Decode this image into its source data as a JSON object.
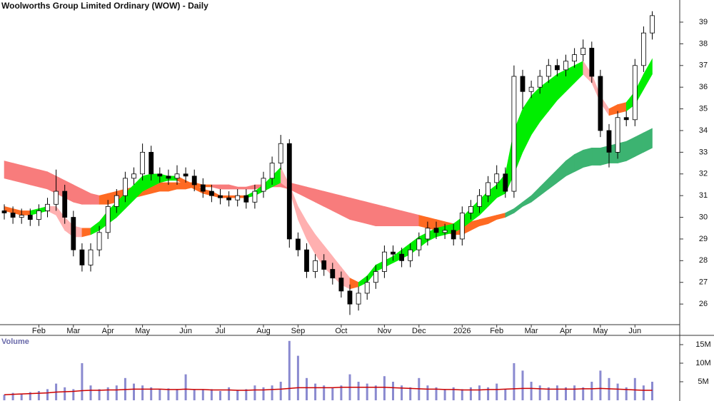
{
  "chart_data": [
    {
      "type": "candlestick",
      "title": "Woolworths Group Limited Ordinary (WOW) - Daily",
      "categories": [
        null,
        null,
        null,
        null,
        "Feb",
        null,
        null,
        null,
        "Mar",
        null,
        null,
        null,
        "Apr",
        null,
        null,
        null,
        "May",
        null,
        null,
        null,
        null,
        "Jun",
        null,
        null,
        null,
        "Jul",
        null,
        null,
        null,
        null,
        "Aug",
        null,
        null,
        null,
        "Sep",
        null,
        null,
        null,
        null,
        "Oct",
        null,
        null,
        null,
        null,
        "Nov",
        null,
        null,
        null,
        "Dec",
        null,
        null,
        null,
        null,
        "2026",
        null,
        null,
        null,
        "Feb",
        null,
        null,
        null,
        "Mar",
        null,
        null,
        null,
        "Apr",
        null,
        null,
        null,
        "May",
        null,
        null,
        null,
        "Jun",
        null,
        null
      ],
      "open": [
        30.3,
        30.2,
        30.0,
        30.1,
        29.9,
        30.3,
        30.6,
        31.2,
        30.0,
        28.5,
        27.8,
        28.5,
        29.3,
        30.5,
        31.0,
        31.8,
        32.0,
        33.0,
        32.0,
        31.9,
        31.8,
        32.0,
        31.9,
        31.5,
        31.2,
        31.0,
        30.9,
        30.8,
        31.0,
        30.7,
        31.2,
        31.8,
        32.5,
        33.4,
        29.0,
        28.5,
        27.5,
        28.0,
        27.6,
        27.2,
        26.6,
        26.0,
        26.5,
        27.0,
        27.5,
        28.4,
        28.3,
        28.0,
        28.5,
        29.0,
        29.5,
        29.3,
        29.4,
        29.0,
        30.2,
        30.5,
        31.0,
        31.6,
        32.0,
        31.2,
        36.5,
        35.8,
        36.0,
        36.5,
        37.0,
        36.8,
        37.2,
        37.5,
        37.8,
        36.5,
        34.0,
        33.0,
        34.6,
        34.5,
        37.0,
        38.5
      ],
      "high": [
        30.6,
        30.5,
        30.4,
        30.4,
        30.6,
        30.9,
        32.2,
        31.5,
        30.3,
        28.8,
        28.8,
        29.6,
        30.8,
        31.3,
        32.1,
        32.3,
        33.4,
        33.3,
        32.3,
        32.2,
        32.4,
        32.3,
        32.2,
        31.8,
        31.5,
        31.3,
        31.2,
        31.3,
        31.3,
        31.5,
        32.1,
        32.8,
        33.8,
        33.6,
        29.3,
        28.8,
        28.3,
        28.3,
        27.9,
        27.5,
        26.9,
        26.8,
        27.3,
        27.8,
        28.7,
        28.7,
        28.6,
        28.8,
        29.3,
        29.8,
        29.8,
        29.7,
        29.7,
        30.5,
        30.8,
        31.3,
        31.9,
        32.4,
        32.3,
        37.0,
        36.8,
        36.3,
        36.8,
        37.3,
        37.3,
        37.5,
        37.8,
        38.2,
        38.1,
        36.8,
        34.3,
        34.9,
        34.9,
        37.3,
        38.8,
        39.5
      ],
      "low": [
        29.9,
        29.7,
        29.7,
        29.6,
        29.6,
        30.0,
        30.3,
        29.7,
        28.2,
        27.5,
        27.5,
        28.2,
        29.0,
        30.2,
        30.7,
        31.5,
        31.7,
        31.7,
        31.6,
        31.5,
        31.5,
        31.6,
        31.2,
        30.9,
        30.7,
        30.6,
        30.5,
        30.5,
        30.4,
        30.4,
        30.9,
        31.5,
        32.2,
        28.6,
        28.2,
        27.2,
        27.2,
        27.3,
        26.9,
        26.3,
        25.5,
        25.7,
        26.2,
        26.7,
        27.2,
        28.0,
        27.7,
        27.7,
        28.2,
        28.7,
        29.0,
        29.0,
        28.7,
        28.7,
        29.9,
        30.2,
        30.7,
        31.3,
        30.9,
        30.9,
        35.0,
        35.5,
        35.7,
        36.2,
        36.5,
        36.5,
        36.9,
        37.2,
        36.2,
        33.7,
        32.3,
        32.7,
        34.2,
        34.2,
        36.7,
        38.2
      ],
      "close": [
        30.2,
        30.0,
        30.1,
        29.9,
        30.3,
        30.6,
        31.2,
        30.0,
        28.5,
        27.8,
        28.5,
        29.3,
        30.5,
        31.0,
        31.8,
        32.0,
        33.0,
        32.0,
        31.9,
        31.8,
        32.0,
        31.9,
        31.5,
        31.2,
        31.0,
        30.9,
        30.8,
        31.0,
        30.7,
        31.2,
        31.8,
        32.5,
        33.4,
        29.0,
        28.5,
        27.5,
        28.0,
        27.6,
        27.2,
        26.6,
        26.0,
        26.5,
        27.0,
        27.5,
        28.4,
        28.3,
        28.0,
        28.5,
        29.0,
        29.5,
        29.3,
        29.4,
        29.0,
        30.2,
        30.5,
        31.0,
        31.6,
        32.0,
        31.2,
        36.5,
        35.8,
        36.0,
        36.5,
        37.0,
        36.8,
        37.2,
        37.5,
        37.8,
        36.5,
        34.0,
        33.0,
        34.6,
        34.5,
        37.0,
        38.5,
        39.3
      ],
      "ribbons": [
        {
          "upper": [
            32.6,
            32.5,
            32.4,
            32.3,
            32.2,
            32.1,
            31.9,
            31.7,
            31.5,
            31.3,
            31.1,
            31.0,
            31.1,
            31.2,
            31.3,
            31.4,
            31.5,
            31.5,
            31.6,
            31.6,
            31.6,
            31.6,
            31.6,
            31.5,
            31.5,
            31.5,
            31.5,
            31.4,
            31.4,
            31.5,
            31.5,
            31.6,
            31.6,
            31.6,
            31.5,
            31.4,
            31.3,
            31.2,
            31.1,
            31.0,
            30.9,
            30.8,
            30.7,
            30.6,
            30.5,
            30.4,
            30.3,
            30.2,
            30.1,
            30.0,
            29.9,
            29.8,
            29.7,
            29.7,
            29.8,
            29.9,
            30.0,
            30.1,
            30.2,
            30.4,
            30.7,
            31.0,
            31.4,
            31.8,
            32.2,
            32.6,
            32.9,
            33.1,
            33.2,
            33.2,
            33.3,
            33.4,
            33.5,
            33.7,
            33.9,
            34.1
          ],
          "lower": [
            31.8,
            31.7,
            31.6,
            31.5,
            31.4,
            31.3,
            31.1,
            30.9,
            30.7,
            30.6,
            30.6,
            30.6,
            30.6,
            30.7,
            30.8,
            30.9,
            31.0,
            31.1,
            31.2,
            31.2,
            31.3,
            31.3,
            31.4,
            31.4,
            31.4,
            31.3,
            31.3,
            31.3,
            31.3,
            31.3,
            31.4,
            31.4,
            31.4,
            31.3,
            31.1,
            30.9,
            30.7,
            30.5,
            30.3,
            30.1,
            29.9,
            29.8,
            29.7,
            29.6,
            29.6,
            29.6,
            29.6,
            29.6,
            29.6,
            29.5,
            29.4,
            29.3,
            29.2,
            29.2,
            29.4,
            29.6,
            29.7,
            29.9,
            30.0,
            30.2,
            30.5,
            30.7,
            31.0,
            31.3,
            31.6,
            31.9,
            32.1,
            32.3,
            32.4,
            32.4,
            32.5,
            32.5,
            32.6,
            32.8,
            33.0,
            33.2
          ],
          "colors": [
            "#f87c7c",
            "#f87c7c",
            "#f87c7c",
            "#f87c7c",
            "#f87c7c",
            "#f87c7c",
            "#f87c7c",
            "#f87c7c",
            "#f87c7c",
            "#f87c7c",
            "#f87c7c",
            "#f87c7c",
            "#ff6a22",
            "#ff6a22",
            "#ff6a22",
            "#ff6a22",
            "#ff6a22",
            "#ff6a22",
            "#ff6a22",
            "#ff6a22",
            "#ff6a22",
            "#ff6a22",
            "#ff6a22",
            "#ff6a22",
            "#ff6a22",
            "#f87c7c",
            "#f87c7c",
            "#f87c7c",
            "#f87c7c",
            "#f87c7c",
            "#f87c7c",
            "#f87c7c",
            "#f87c7c",
            "#f87c7c",
            "#f87c7c",
            "#f87c7c",
            "#f87c7c",
            "#f87c7c",
            "#f87c7c",
            "#f87c7c",
            "#f87c7c",
            "#f87c7c",
            "#f87c7c",
            "#f87c7c",
            "#f87c7c",
            "#f87c7c",
            "#f87c7c",
            "#f87c7c",
            "#f87c7c",
            "#ff6a22",
            "#ff6a22",
            "#ff6a22",
            "#ff6a22",
            "#ff6a22",
            "#ff6a22",
            "#ff6a22",
            "#ff6a22",
            "#ff6a22",
            "#ff6a22",
            "#3cb371",
            "#3cb371",
            "#3cb371",
            "#3cb371",
            "#3cb371",
            "#3cb371",
            "#3cb371",
            "#3cb371",
            "#3cb371",
            "#3cb371",
            "#3cb371",
            "#3cb371",
            "#3cb371",
            "#3cb371",
            "#3cb371",
            "#3cb371",
            "#3cb371"
          ]
        },
        {
          "upper": [
            30.5,
            30.4,
            30.3,
            30.3,
            30.4,
            30.5,
            30.5,
            30.0,
            29.6,
            29.5,
            29.5,
            29.8,
            30.3,
            30.7,
            31.1,
            31.5,
            31.9,
            32.0,
            32.0,
            31.9,
            31.9,
            31.7,
            31.5,
            31.3,
            31.2,
            31.0,
            31.0,
            31.0,
            31.0,
            31.2,
            31.5,
            31.9,
            32.3,
            31.5,
            30.5,
            29.8,
            29.2,
            28.7,
            28.2,
            27.7,
            27.2,
            27.0,
            27.3,
            27.8,
            28.0,
            28.2,
            28.5,
            28.8,
            29.1,
            29.3,
            29.5,
            29.6,
            29.7,
            30.0,
            30.4,
            30.8,
            31.2,
            31.5,
            32.0,
            34.0,
            35.0,
            35.6,
            36.0,
            36.3,
            36.6,
            36.8,
            37.0,
            37.2,
            36.6,
            35.6,
            35.0,
            35.2,
            35.3,
            35.8,
            36.6,
            37.3
          ],
          "lower": [
            30.3,
            30.2,
            30.1,
            30.1,
            30.2,
            30.3,
            30.1,
            29.4,
            29.1,
            29.1,
            29.2,
            29.4,
            29.7,
            30.0,
            30.4,
            30.8,
            31.2,
            31.4,
            31.6,
            31.7,
            31.7,
            31.5,
            31.3,
            31.1,
            31.0,
            30.9,
            30.9,
            30.9,
            30.9,
            31.0,
            31.2,
            31.4,
            31.6,
            31.3,
            29.9,
            29.0,
            28.3,
            27.7,
            27.3,
            26.9,
            26.7,
            26.8,
            27.0,
            27.5,
            27.7,
            27.9,
            28.1,
            28.3,
            28.6,
            28.9,
            29.1,
            29.2,
            29.3,
            29.5,
            29.8,
            30.1,
            30.5,
            30.9,
            31.1,
            32.0,
            33.0,
            33.8,
            34.4,
            34.9,
            35.4,
            35.8,
            36.2,
            36.6,
            36.2,
            35.3,
            34.7,
            34.8,
            34.9,
            35.2,
            35.9,
            36.6
          ],
          "colors": [
            "#ff6a22",
            "#ff6a22",
            "#ff6a22",
            "#ff6a22",
            "#00ee00",
            "#00ee00",
            "#ffb0b0",
            "#ffb0b0",
            "#ffb0b0",
            "#ffb0b0",
            "#ff6a22",
            "#00ee00",
            "#00ee00",
            "#00ee00",
            "#00ee00",
            "#00ee00",
            "#00ee00",
            "#00ee00",
            "#00ee00",
            "#00ee00",
            "#00ee00",
            "#ff6a22",
            "#ff6a22",
            "#ff6a22",
            "#ff6a22",
            "#ff6a22",
            "#ff6a22",
            "#ff6a22",
            "#ff6a22",
            "#00ee00",
            "#00ee00",
            "#00ee00",
            "#00ee00",
            "#ffb0b0",
            "#ffb0b0",
            "#ffb0b0",
            "#ffb0b0",
            "#ffb0b0",
            "#ffb0b0",
            "#ffb0b0",
            "#ffb0b0",
            "#ff6a22",
            "#00ee00",
            "#00ee00",
            "#00ee00",
            "#00ee00",
            "#00ee00",
            "#00ee00",
            "#00ee00",
            "#00ee00",
            "#00ee00",
            "#00ee00",
            "#00ee00",
            "#00ee00",
            "#00ee00",
            "#00ee00",
            "#00ee00",
            "#00ee00",
            "#00ee00",
            "#00ee00",
            "#00ee00",
            "#00ee00",
            "#00ee00",
            "#00ee00",
            "#00ee00",
            "#00ee00",
            "#00ee00",
            "#00ee00",
            "#ffb0b0",
            "#ffb0b0",
            "#ffb0b0",
            "#ff6a22",
            "#ff6a22",
            "#00ee00",
            "#00ee00",
            "#00ee00"
          ]
        }
      ],
      "ylim": [
        25.05,
        40.02
      ],
      "yticks": [
        26,
        27,
        28,
        29,
        30,
        31,
        32,
        33,
        34,
        35,
        36,
        37,
        38,
        39
      ]
    },
    {
      "type": "bar",
      "title": "Volume",
      "color": "#8a8ad0",
      "values": [
        1.5,
        2.0,
        1.8,
        2.2,
        2.5,
        3.0,
        4.5,
        3.5,
        3.0,
        10.0,
        4.0,
        3.0,
        3.5,
        4.0,
        6.0,
        4.5,
        4.0,
        3.5,
        3.0,
        3.2,
        3.0,
        7.0,
        3.0,
        2.8,
        3.0,
        2.5,
        3.5,
        2.8,
        3.0,
        4.0,
        3.5,
        4.0,
        5.0,
        16.0,
        12.0,
        6.0,
        4.5,
        4.0,
        3.5,
        4.0,
        7.0,
        5.0,
        4.5,
        4.0,
        6.5,
        5.0,
        4.0,
        3.5,
        6.0,
        4.0,
        3.5,
        3.0,
        3.5,
        3.0,
        3.5,
        4.0,
        3.5,
        4.5,
        3.0,
        10.0,
        8.0,
        5.0,
        4.0,
        3.5,
        4.0,
        3.5,
        4.0,
        3.5,
        5.0,
        8.0,
        6.0,
        4.5,
        3.5,
        6.0,
        4.0,
        5.0
      ],
      "average": {
        "color": "#cc0000",
        "values": [
          1.5,
          1.6,
          1.7,
          1.8,
          1.9,
          2.0,
          2.2,
          2.3,
          2.4,
          2.6,
          2.7,
          2.7,
          2.8,
          2.8,
          2.9,
          3.0,
          3.0,
          3.0,
          3.0,
          2.9,
          2.9,
          3.0,
          2.9,
          2.9,
          2.8,
          2.8,
          2.8,
          2.7,
          2.7,
          2.8,
          2.8,
          2.9,
          3.0,
          3.2,
          3.4,
          3.4,
          3.4,
          3.4,
          3.4,
          3.5,
          3.5,
          3.5,
          3.5,
          3.5,
          3.5,
          3.4,
          3.3,
          3.2,
          3.1,
          3.0,
          3.0,
          2.9,
          2.9,
          2.8,
          2.8,
          2.8,
          2.9,
          2.9,
          3.0,
          3.1,
          3.2,
          3.2,
          3.1,
          3.0,
          3.0,
          3.0,
          3.0,
          3.1,
          3.1,
          3.2,
          3.1,
          3.0,
          2.9,
          2.8,
          2.7,
          2.7
        ]
      },
      "ylim": [
        0,
        17.5
      ],
      "yticks": [
        {
          "value": 5,
          "label": "5M"
        },
        {
          "value": 10,
          "label": "10M"
        },
        {
          "value": 15,
          "label": "15M"
        }
      ]
    }
  ]
}
